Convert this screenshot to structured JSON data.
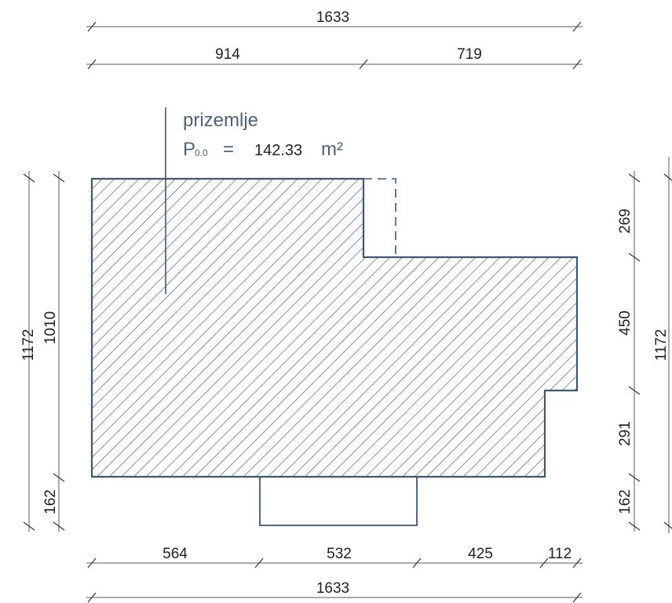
{
  "colors": {
    "outline": "#3f5870",
    "hatch": "#3f5870",
    "label": "#4d6478",
    "dimension": "#222222"
  },
  "floor_label": {
    "name": "prizemlje",
    "area_symbol": "P",
    "area_subscript": "0.0",
    "equals": "=",
    "area_value": "142.33",
    "area_unit": "m²"
  },
  "dimensions": {
    "top_total": "1633",
    "top_left": "914",
    "top_right": "719",
    "bottom_1": "564",
    "bottom_2": "532",
    "bottom_3": "425",
    "bottom_4": "112",
    "bottom_total": "1633",
    "left_outer": "1172",
    "left_inner": "1010",
    "left_bottom": "162",
    "right_1": "269",
    "right_2": "450",
    "right_3": "291",
    "right_4": "162",
    "right_total": "1172"
  }
}
